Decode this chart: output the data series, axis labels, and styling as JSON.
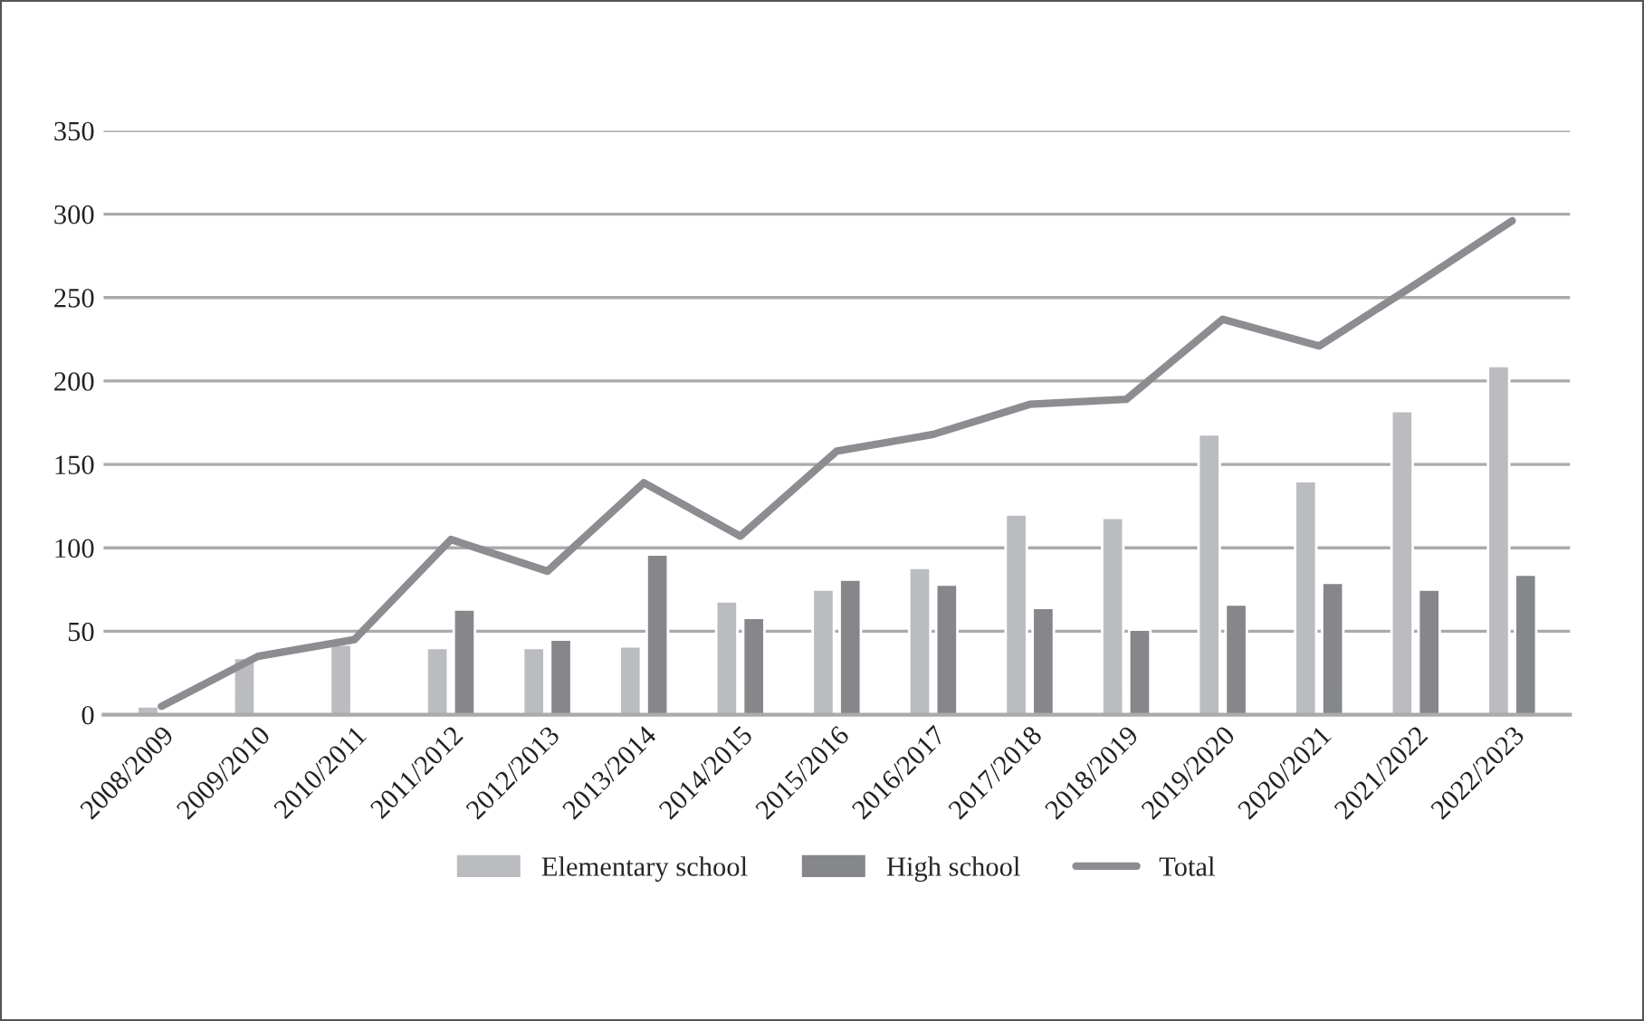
{
  "chart_data": {
    "type": "bar",
    "categories": [
      "2008/2009",
      "2009/2010",
      "2010/2011",
      "2011/2012",
      "2012/2013",
      "2013/2014",
      "2014/2015",
      "2015/2016",
      "2016/2017",
      "2017/2018",
      "2018/2019",
      "2019/2020",
      "2020/2021",
      "2021/2022",
      "2022/2023"
    ],
    "series": [
      {
        "name": "Elementary school",
        "color": "#bbbcbf",
        "values": [
          5,
          34,
          42,
          40,
          40,
          41,
          68,
          75,
          88,
          120,
          118,
          168,
          140,
          182,
          209
        ]
      },
      {
        "name": "High school",
        "color": "#86878b",
        "values": [
          null,
          null,
          null,
          63,
          45,
          96,
          58,
          81,
          78,
          64,
          51,
          66,
          79,
          75,
          84
        ]
      },
      {
        "name": "Total",
        "type": "line",
        "color": "#8c8d90",
        "values": [
          5,
          35,
          45,
          105,
          86,
          139,
          107,
          158,
          168,
          186,
          189,
          237,
          221,
          258,
          296
        ]
      }
    ],
    "ylim": [
      0,
      350
    ],
    "yticks": [
      0,
      50,
      100,
      150,
      200,
      250,
      300,
      350
    ],
    "grid": "y",
    "legend": "bottom",
    "marker": "none",
    "line_style": "solid"
  }
}
